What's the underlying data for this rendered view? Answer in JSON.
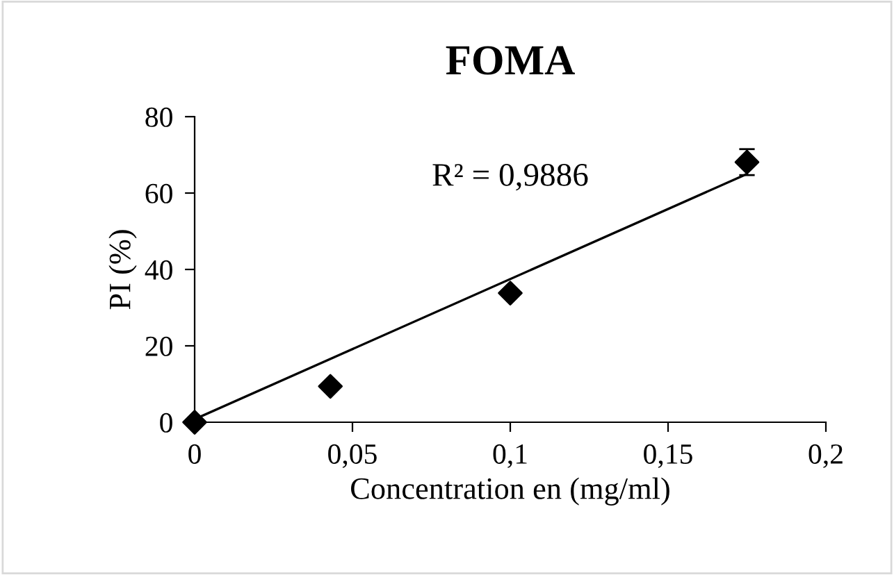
{
  "chart_data": {
    "type": "scatter",
    "title": "FOMA",
    "xlabel": "Concentration en (mg/ml)",
    "ylabel": "PI (%)",
    "xlim": [
      0,
      0.2
    ],
    "xticks": [
      {
        "value": 0,
        "label": "0"
      },
      {
        "value": 0.05,
        "label": "0,05"
      },
      {
        "value": 0.1,
        "label": "0,1"
      },
      {
        "value": 0.15,
        "label": "0,15"
      },
      {
        "value": 0.2,
        "label": "0,2"
      }
    ],
    "ylim": [
      0,
      80
    ],
    "yticks": [
      0,
      20,
      40,
      60,
      80
    ],
    "grid": false,
    "marker": "diamond",
    "series": [
      {
        "color": "#000000",
        "x": [
          0,
          0.043,
          0.1,
          0.175
        ],
        "values": [
          0,
          9.4,
          33.8,
          68.1
        ],
        "errors": [
          null,
          null,
          null,
          3.4
        ]
      },
      {
        "type": "line",
        "color": "#000000",
        "marker": "none",
        "line_style": "solid",
        "x": [
          0,
          0.175
        ],
        "values": [
          0.8,
          65
        ]
      }
    ],
    "annotations": [
      "R² = 0,9886"
    ]
  }
}
